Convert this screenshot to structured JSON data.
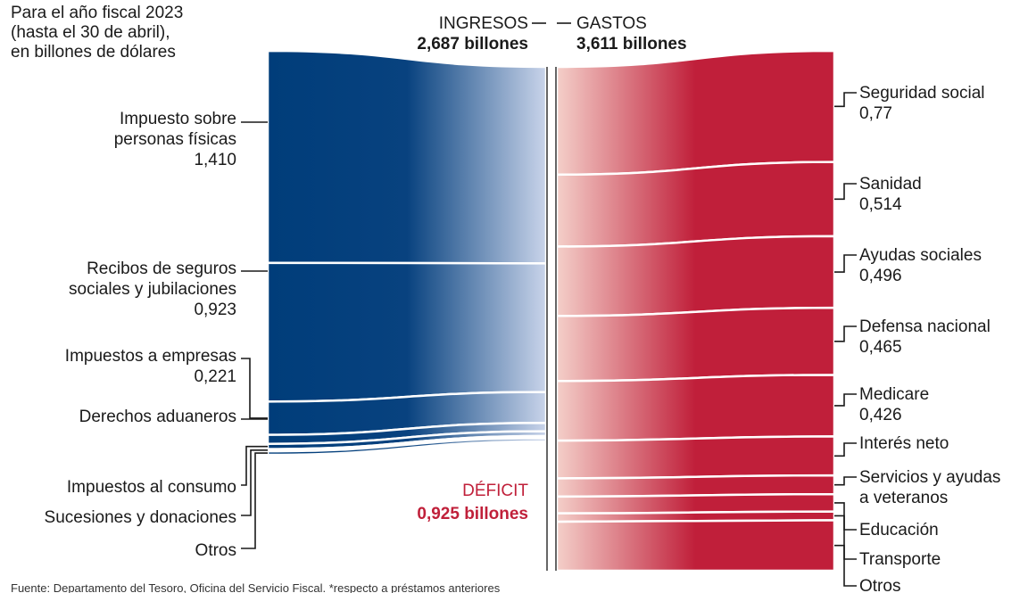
{
  "chart_data": {
    "type": "sankey",
    "subtitle": [
      "Para el año fiscal 2023",
      "(hasta el 30 de abril),",
      "en billones de dólares"
    ],
    "income_header": "INGRESOS",
    "income_total": "2,687 billones",
    "income_total_value": 2.687,
    "spending_header": "GASTOS",
    "spending_total": "3,611 billones",
    "spending_total_value": 3.611,
    "deficit_label": "DÉFICIT",
    "deficit_total": "0,925 billones",
    "deficit_value": 0.925,
    "income": [
      {
        "lines": [
          "Impuesto sobre",
          "personas físicas",
          "1,410"
        ],
        "value": 1.41
      },
      {
        "lines": [
          "Recibos de seguros",
          "sociales y jubilaciones",
          "0,923"
        ],
        "value": 0.923
      },
      {
        "lines": [
          "Impuestos a empresas",
          "0,221"
        ],
        "value": 0.221
      },
      {
        "lines": [
          "Derechos aduaneros"
        ],
        "value": 0.06
      },
      {
        "lines": [
          "Impuestos al consumo"
        ],
        "value": 0.035
      },
      {
        "lines": [
          "Sucesiones y donaciones"
        ],
        "value": 0.015
      },
      {
        "lines": [
          "Otros"
        ],
        "value": 0.023
      }
    ],
    "spending": [
      {
        "lines": [
          "Seguridad social",
          "0,77"
        ],
        "value": 0.77
      },
      {
        "lines": [
          "Sanidad",
          "0,514"
        ],
        "value": 0.514
      },
      {
        "lines": [
          "Ayudas sociales",
          "0,496"
        ],
        "value": 0.496
      },
      {
        "lines": [
          "Defensa nacional",
          "0,465"
        ],
        "value": 0.465
      },
      {
        "lines": [
          "Medicare",
          "0,426"
        ],
        "value": 0.426
      },
      {
        "lines": [
          "Interés neto"
        ],
        "value": 0.27
      },
      {
        "lines": [
          "Servicios y ayudas",
          "a veteranos"
        ],
        "value": 0.13
      },
      {
        "lines": [
          "Educación"
        ],
        "value": 0.12
      },
      {
        "lines": [
          "Transporte"
        ],
        "value": 0.06
      },
      {
        "lines": [
          "Otros"
        ],
        "value": 0.35
      }
    ],
    "colors": {
      "income_dark": "#003d7a",
      "income_light": "#c9d4ea",
      "spending_dark": "#c01f3a",
      "spending_light": "#f4cfc9",
      "deficit_text": "#c0203a"
    }
  },
  "source": "Fuente: Departamento del Tesoro, Oficina del Servicio Fiscal. *respecto a préstamos anteriores"
}
